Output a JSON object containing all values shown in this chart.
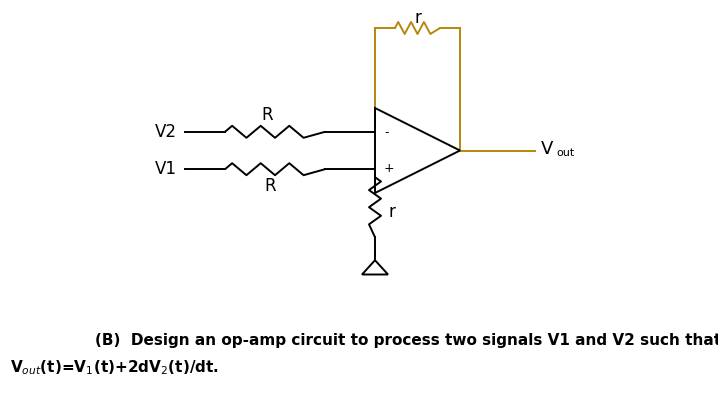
{
  "bg_color": "#ffffff",
  "line_color": "#000000",
  "feedback_color": "#b8860b",
  "label_V2": "V2",
  "label_V1": "V1",
  "label_R_top": "R",
  "label_R_bottom": "R",
  "label_r_top": "r",
  "label_r_bottom": "r",
  "label_Vout": "V",
  "label_Vout_sub": "out",
  "label_minus": "-",
  "label_plus": "+",
  "caption_line1": "(B)  Design an op-amp circuit to process two signals V1 and V2 such that",
  "caption_line2": "V$_{out}$(t)=V$_{1}$(t)+2dV$_{2}$(t)/dt.",
  "font_size_labels": 12,
  "font_size_caption": 11,
  "fig_w": 7.18,
  "fig_h": 4.05,
  "dpi": 100
}
